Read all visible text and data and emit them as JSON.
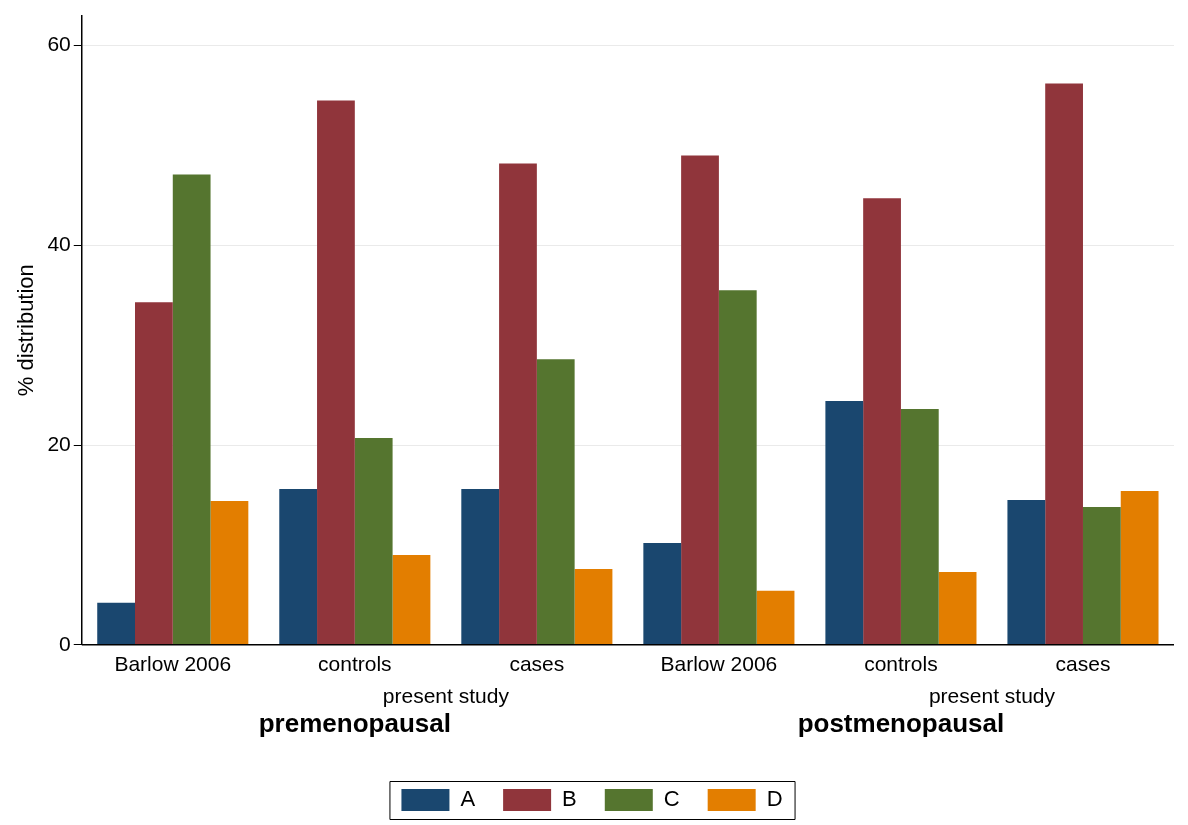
{
  "chart_data": {
    "type": "bar",
    "ylabel": "% distribution",
    "categories": [
      "Barlow 2006",
      "controls",
      "cases",
      "Barlow 2006",
      "controls",
      "cases"
    ],
    "series": [
      {
        "name": "A",
        "color": "#1a476f",
        "values": [
          4.2,
          15.6,
          15.6,
          10.2,
          24.4,
          14.5
        ]
      },
      {
        "name": "B",
        "color": "#90353b",
        "values": [
          34.3,
          54.5,
          48.2,
          49.0,
          44.7,
          56.2
        ]
      },
      {
        "name": "C",
        "color": "#55752f",
        "values": [
          47.1,
          20.7,
          28.6,
          35.5,
          23.6,
          13.8
        ]
      },
      {
        "name": "D",
        "color": "#e37e00",
        "values": [
          14.4,
          9.0,
          7.6,
          5.4,
          7.3,
          15.4
        ]
      }
    ],
    "ylim": [
      0,
      63
    ],
    "yticks": [
      0,
      20,
      40,
      60
    ],
    "grid": "y",
    "legend": "bottom",
    "annotations": [
      "present study",
      "premenopausal",
      "present study",
      "postmenopausal"
    ]
  }
}
